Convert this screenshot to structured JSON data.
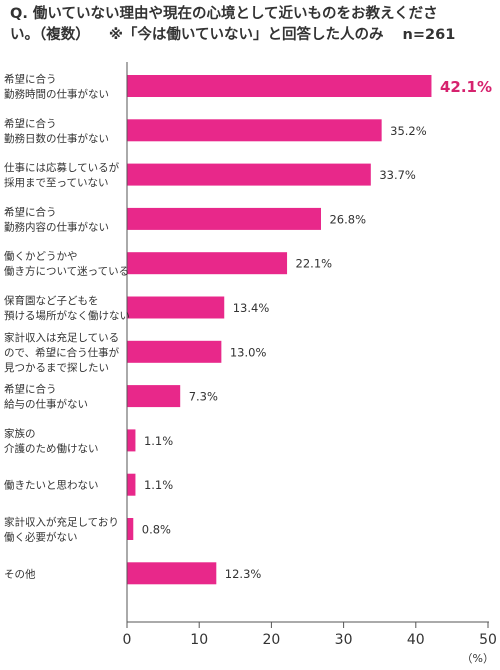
{
  "title": {
    "line1": "Q. 働いていない理由や現在の心境として近いものをお教えくださ",
    "line2_prefix": "い。（複数）",
    "line2_note": "※「今は働いていない」と回答した人のみ",
    "line2_n": "n=261"
  },
  "chart_data": {
    "type": "bar",
    "orientation": "horizontal",
    "categories": [
      [
        "希望に合う",
        "勤務時間の仕事がない"
      ],
      [
        "希望に合う",
        "勤務日数の仕事がない"
      ],
      [
        "仕事には応募しているが",
        "採用まで至っていない"
      ],
      [
        "希望に合う",
        "勤務内容の仕事がない"
      ],
      [
        "働くかどうかや",
        "働き方について迷っている"
      ],
      [
        "保育園など子どもを",
        "預ける場所がなく働けない"
      ],
      [
        "家計収入は充足している",
        "ので、希望に合う仕事が",
        "見つかるまで探したい"
      ],
      [
        "希望に合う",
        "給与の仕事がない"
      ],
      [
        "家族の",
        "介護のため働けない"
      ],
      [
        "働きたいと思わない"
      ],
      [
        "家計収入が充足しており",
        "働く必要がない"
      ],
      [
        "その他"
      ]
    ],
    "values": [
      42.1,
      35.2,
      33.7,
      26.8,
      22.1,
      13.4,
      13.0,
      7.3,
      1.1,
      1.1,
      0.8,
      12.3
    ],
    "value_labels": [
      "42.1%",
      "35.2%",
      "33.7%",
      "26.8%",
      "22.1%",
      "13.4%",
      "13.0%",
      "7.3%",
      "1.1%",
      "1.1%",
      "0.8%",
      "12.3%"
    ],
    "highlight_index": 0,
    "xlim": [
      0,
      50
    ],
    "xticks": [
      0,
      10,
      20,
      30,
      40,
      50
    ],
    "xtick_labels": [
      "0",
      "10",
      "20",
      "30",
      "40",
      "50"
    ],
    "xunit": "（%）",
    "grid": false,
    "legend": "none"
  },
  "colors": {
    "bar": "#e8288a",
    "highlight_label": "#d6226e",
    "axis": "#555555",
    "text": "#333333"
  }
}
